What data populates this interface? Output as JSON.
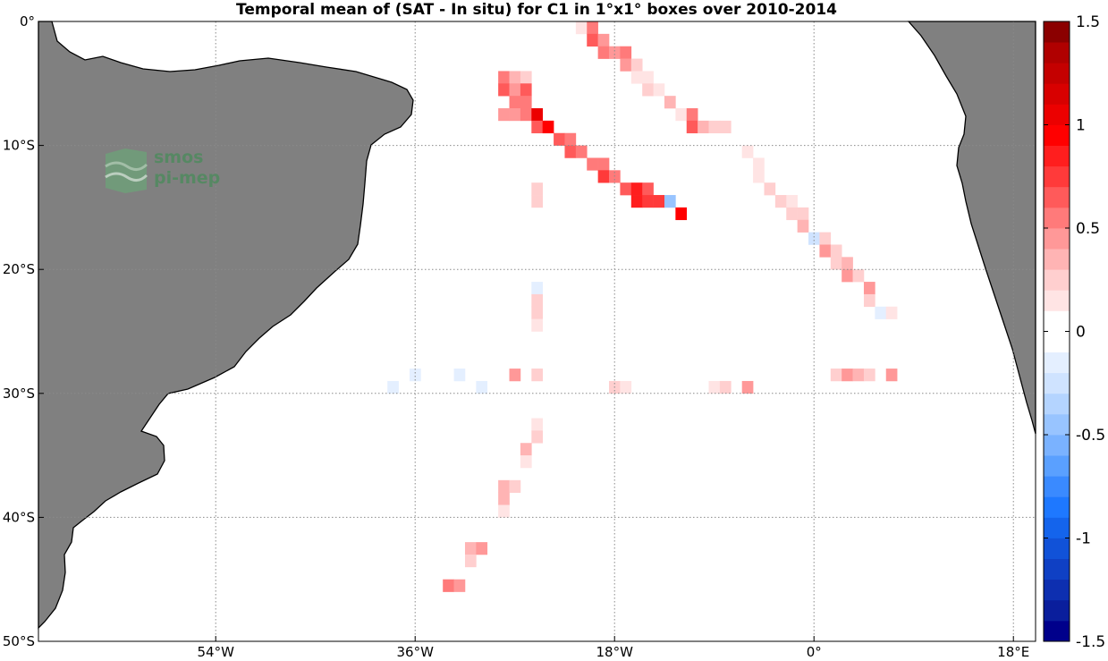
{
  "chart_data": {
    "type": "heatmap",
    "title": "Temporal mean of (SAT - In situ) for C1 in 1°x1° boxes over 2010-2014",
    "xlim": [
      -70,
      20
    ],
    "ylim": [
      -50,
      0
    ],
    "grid": true,
    "x_ticks": [
      {
        "value": -54,
        "label": "54°W"
      },
      {
        "value": -36,
        "label": "36°W"
      },
      {
        "value": -18,
        "label": "18°W"
      },
      {
        "value": 0,
        "label": "0°"
      },
      {
        "value": 18,
        "label": "18°E"
      }
    ],
    "y_ticks": [
      {
        "value": 0,
        "label": "0°"
      },
      {
        "value": -10,
        "label": "10°S"
      },
      {
        "value": -20,
        "label": "20°S"
      },
      {
        "value": -30,
        "label": "30°S"
      },
      {
        "value": -40,
        "label": "40°S"
      },
      {
        "value": -50,
        "label": "50°S"
      }
    ],
    "colorbar": {
      "min": -1.5,
      "max": 1.5,
      "levels": 30,
      "ticks": [
        {
          "value": 1.5,
          "label": "1.5"
        },
        {
          "value": 1,
          "label": "1"
        },
        {
          "value": 0.5,
          "label": "0.5"
        },
        {
          "value": 0,
          "label": "0"
        },
        {
          "value": -0.5,
          "label": "-0.5"
        },
        {
          "value": -1,
          "label": "-1"
        },
        {
          "value": -1.5,
          "label": "-1.5"
        }
      ],
      "colors_low_to_high": [
        "#00008b",
        "#0a1e9c",
        "#0d2fb0",
        "#0f40c4",
        "#1152d8",
        "#1464ec",
        "#1e78ff",
        "#3a8aff",
        "#5aa0ff",
        "#7ab2ff",
        "#98c4ff",
        "#b4d4ff",
        "#cfe3ff",
        "#e4efff",
        "#ffffff",
        "#ffffff",
        "#ffe4e4",
        "#ffcfcf",
        "#ffb4b4",
        "#ff9898",
        "#ff7a7a",
        "#ff5a5a",
        "#ff3a3a",
        "#ff1e1e",
        "#ff0000",
        "#ec0000",
        "#d80000",
        "#c40000",
        "#b00000",
        "#8b0000"
      ]
    },
    "cells": [
      {
        "lon": -21,
        "lat": -0.5,
        "v": 0.15
      },
      {
        "lon": -20,
        "lat": -0.5,
        "v": 0.55
      },
      {
        "lon": -20,
        "lat": -1.5,
        "v": 0.6
      },
      {
        "lon": -19,
        "lat": -1.5,
        "v": 0.45
      },
      {
        "lon": -19,
        "lat": -2.5,
        "v": 0.5
      },
      {
        "lon": -18,
        "lat": -2.5,
        "v": 0.4
      },
      {
        "lon": -17,
        "lat": -2.5,
        "v": 0.55
      },
      {
        "lon": -17,
        "lat": -3.5,
        "v": 0.45
      },
      {
        "lon": -16,
        "lat": -3.5,
        "v": 0.2
      },
      {
        "lon": -16,
        "lat": -4.5,
        "v": 0.15
      },
      {
        "lon": -15,
        "lat": -4.5,
        "v": 0.12
      },
      {
        "lon": -15,
        "lat": -5.5,
        "v": 0.25
      },
      {
        "lon": -14,
        "lat": -5.5,
        "v": 0.15
      },
      {
        "lon": -13,
        "lat": -6.5,
        "v": 0.3
      },
      {
        "lon": -12,
        "lat": -7.5,
        "v": 0.15
      },
      {
        "lon": -11,
        "lat": -7.5,
        "v": 0.55
      },
      {
        "lon": -11,
        "lat": -8.5,
        "v": 0.6
      },
      {
        "lon": -10,
        "lat": -8.5,
        "v": 0.35
      },
      {
        "lon": -9,
        "lat": -8.5,
        "v": 0.25
      },
      {
        "lon": -8,
        "lat": -8.5,
        "v": 0.25
      },
      {
        "lon": -28,
        "lat": -4.5,
        "v": 0.55
      },
      {
        "lon": -27,
        "lat": -4.5,
        "v": 0.3
      },
      {
        "lon": -26,
        "lat": -4.5,
        "v": 0.25
      },
      {
        "lon": -28,
        "lat": -5.5,
        "v": 0.6
      },
      {
        "lon": -27,
        "lat": -5.5,
        "v": 0.45
      },
      {
        "lon": -26,
        "lat": -5.5,
        "v": 0.6
      },
      {
        "lon": -27,
        "lat": -6.5,
        "v": 0.5
      },
      {
        "lon": -26,
        "lat": -6.5,
        "v": 0.55
      },
      {
        "lon": -28,
        "lat": -7.5,
        "v": 0.4
      },
      {
        "lon": -27,
        "lat": -7.5,
        "v": 0.45
      },
      {
        "lon": -26,
        "lat": -7.5,
        "v": 0.55
      },
      {
        "lon": -25,
        "lat": -7.5,
        "v": 1.05
      },
      {
        "lon": -25,
        "lat": -8.5,
        "v": 0.65
      },
      {
        "lon": -24,
        "lat": -8.5,
        "v": 0.95
      },
      {
        "lon": -23,
        "lat": -9.5,
        "v": 0.6
      },
      {
        "lon": -22,
        "lat": -9.5,
        "v": 0.5
      },
      {
        "lon": -22,
        "lat": -10.5,
        "v": 0.65
      },
      {
        "lon": -21,
        "lat": -10.5,
        "v": 0.55
      },
      {
        "lon": -20,
        "lat": -11.5,
        "v": 0.5
      },
      {
        "lon": -19,
        "lat": -11.5,
        "v": 0.55
      },
      {
        "lon": -19,
        "lat": -12.5,
        "v": 0.7
      },
      {
        "lon": -18,
        "lat": -12.5,
        "v": 0.55
      },
      {
        "lon": -17,
        "lat": -13.5,
        "v": 0.65
      },
      {
        "lon": -16,
        "lat": -13.5,
        "v": 0.9
      },
      {
        "lon": -15,
        "lat": -13.5,
        "v": 0.65
      },
      {
        "lon": -16,
        "lat": -14.5,
        "v": 0.85
      },
      {
        "lon": -15,
        "lat": -14.5,
        "v": 0.75
      },
      {
        "lon": -14,
        "lat": -14.5,
        "v": 0.7
      },
      {
        "lon": -13,
        "lat": -14.5,
        "v": -0.5
      },
      {
        "lon": -12,
        "lat": -15.5,
        "v": 0.95
      },
      {
        "lon": -25,
        "lat": -13.5,
        "v": 0.25
      },
      {
        "lon": -25,
        "lat": -14.5,
        "v": 0.25
      },
      {
        "lon": -6,
        "lat": -10.5,
        "v": 0.12
      },
      {
        "lon": -5,
        "lat": -11.5,
        "v": 0.15
      },
      {
        "lon": -5,
        "lat": -12.5,
        "v": 0.15
      },
      {
        "lon": -4,
        "lat": -13.5,
        "v": 0.2
      },
      {
        "lon": -3,
        "lat": -14.5,
        "v": 0.25
      },
      {
        "lon": -2,
        "lat": -14.5,
        "v": 0.15
      },
      {
        "lon": -2,
        "lat": -15.5,
        "v": 0.25
      },
      {
        "lon": -1,
        "lat": -15.5,
        "v": 0.2
      },
      {
        "lon": -1,
        "lat": -16.5,
        "v": 0.3
      },
      {
        "lon": 0,
        "lat": -17.5,
        "v": -0.25
      },
      {
        "lon": 1,
        "lat": -17.5,
        "v": 0.2
      },
      {
        "lon": 1,
        "lat": -18.5,
        "v": 0.4
      },
      {
        "lon": 2,
        "lat": -18.5,
        "v": 0.2
      },
      {
        "lon": 2,
        "lat": -19.5,
        "v": 0.25
      },
      {
        "lon": 3,
        "lat": -19.5,
        "v": 0.3
      },
      {
        "lon": 3,
        "lat": -20.5,
        "v": 0.45
      },
      {
        "lon": 4,
        "lat": -20.5,
        "v": 0.2
      },
      {
        "lon": 5,
        "lat": -21.5,
        "v": 0.4
      },
      {
        "lon": 5,
        "lat": -22.5,
        "v": 0.2
      },
      {
        "lon": 6,
        "lat": -23.5,
        "v": -0.12
      },
      {
        "lon": 7,
        "lat": -23.5,
        "v": 0.15
      },
      {
        "lon": -25,
        "lat": -21.5,
        "v": -0.12
      },
      {
        "lon": -25,
        "lat": -22.5,
        "v": 0.2
      },
      {
        "lon": -25,
        "lat": -23.5,
        "v": 0.25
      },
      {
        "lon": -25,
        "lat": -24.5,
        "v": 0.15
      },
      {
        "lon": -36,
        "lat": -28.5,
        "v": -0.12
      },
      {
        "lon": -32,
        "lat": -28.5,
        "v": -0.12
      },
      {
        "lon": -27,
        "lat": -28.5,
        "v": 0.4
      },
      {
        "lon": -25,
        "lat": -28.5,
        "v": 0.25
      },
      {
        "lon": -38,
        "lat": -29.5,
        "v": -0.12
      },
      {
        "lon": -30,
        "lat": -29.5,
        "v": -0.12
      },
      {
        "lon": -18,
        "lat": -29.5,
        "v": 0.25
      },
      {
        "lon": -17,
        "lat": -29.5,
        "v": 0.15
      },
      {
        "lon": -9,
        "lat": -29.5,
        "v": 0.15
      },
      {
        "lon": -8,
        "lat": -29.5,
        "v": 0.2
      },
      {
        "lon": -6,
        "lat": -29.5,
        "v": 0.45
      },
      {
        "lon": 2,
        "lat": -28.5,
        "v": 0.25
      },
      {
        "lon": 3,
        "lat": -28.5,
        "v": 0.4
      },
      {
        "lon": 4,
        "lat": -28.5,
        "v": 0.3
      },
      {
        "lon": 5,
        "lat": -28.5,
        "v": 0.25
      },
      {
        "lon": 7,
        "lat": -28.5,
        "v": 0.4
      },
      {
        "lon": -25,
        "lat": -32.5,
        "v": 0.15
      },
      {
        "lon": -25,
        "lat": -33.5,
        "v": 0.2
      },
      {
        "lon": -26,
        "lat": -34.5,
        "v": 0.3
      },
      {
        "lon": -26,
        "lat": -35.5,
        "v": 0.15
      },
      {
        "lon": -28,
        "lat": -37.5,
        "v": 0.35
      },
      {
        "lon": -27,
        "lat": -37.5,
        "v": 0.25
      },
      {
        "lon": -28,
        "lat": -38.5,
        "v": 0.3
      },
      {
        "lon": -28,
        "lat": -39.5,
        "v": 0.15
      },
      {
        "lon": -31,
        "lat": -42.5,
        "v": 0.3
      },
      {
        "lon": -30,
        "lat": -42.5,
        "v": 0.45
      },
      {
        "lon": -31,
        "lat": -43.5,
        "v": 0.2
      },
      {
        "lon": -33,
        "lat": -45.5,
        "v": 0.55
      },
      {
        "lon": -32,
        "lat": -45.5,
        "v": 0.45
      }
    ]
  },
  "logo": {
    "line1": "smos",
    "line2": "pi-mep"
  },
  "colors": {
    "land": "#808080",
    "coast": "#000000",
    "grid": "#8a8a8a"
  }
}
